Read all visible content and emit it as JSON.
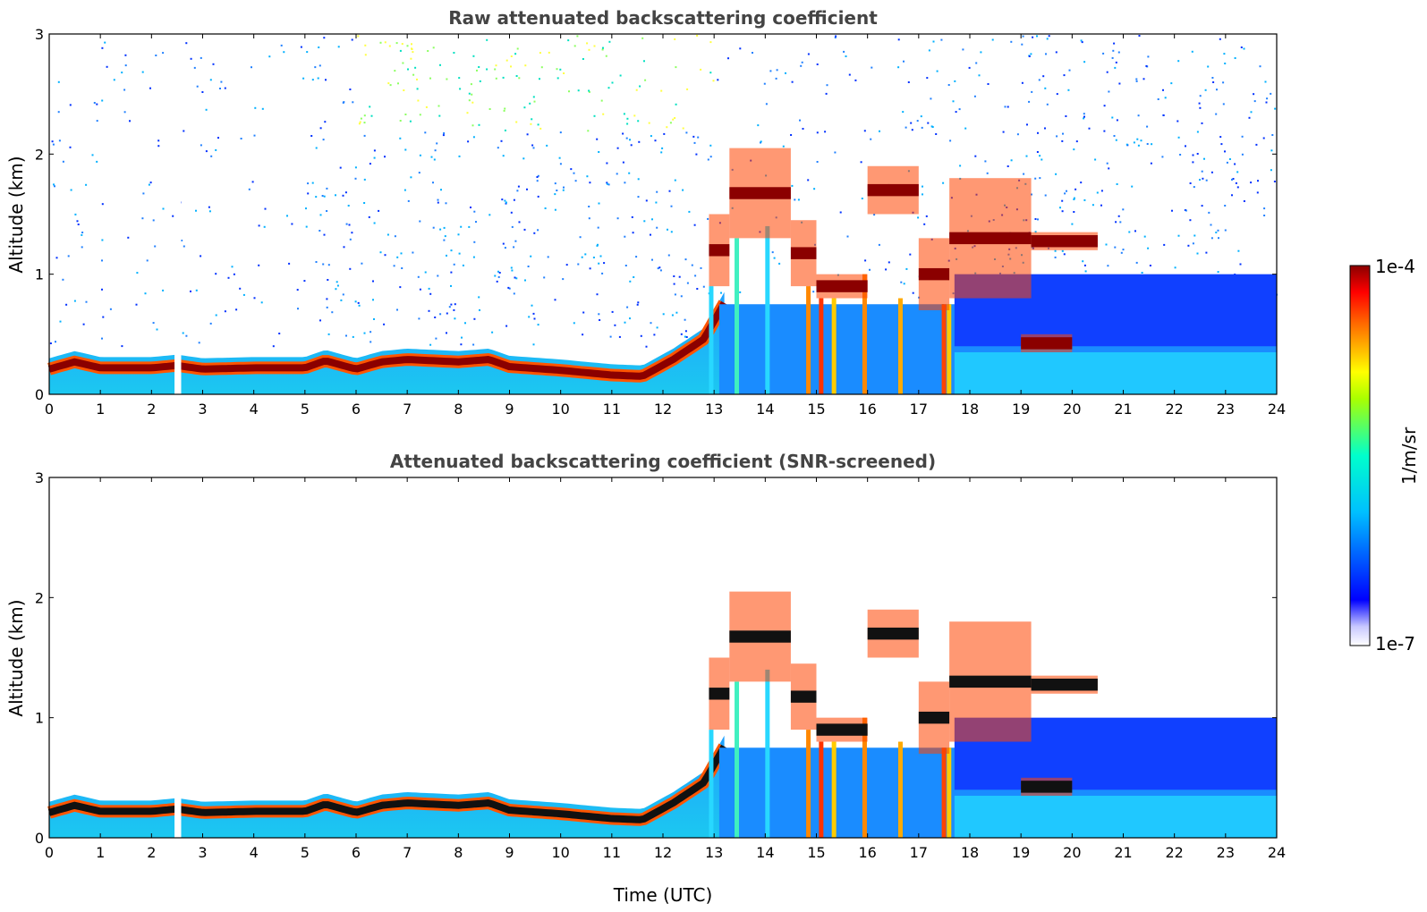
{
  "chart_data": [
    {
      "type": "heatmap",
      "title": "Raw attenuated backscattering coefficient",
      "xlabel": "",
      "ylabel": "Altitude (km)",
      "xlim": [
        0,
        24
      ],
      "ylim": [
        0,
        3
      ],
      "xticks": [
        "0",
        "1",
        "2",
        "3",
        "4",
        "5",
        "6",
        "7",
        "8",
        "9",
        "10",
        "11",
        "12",
        "13",
        "14",
        "15",
        "16",
        "17",
        "18",
        "19",
        "20",
        "21",
        "22",
        "23",
        "24"
      ],
      "yticks": [
        "0",
        "1",
        "2",
        "3"
      ],
      "grid": false,
      "boundary_layer_top_km": [
        [
          0,
          0.3
        ],
        [
          0.5,
          0.36
        ],
        [
          1,
          0.31
        ],
        [
          2,
          0.31
        ],
        [
          2.5,
          0.33
        ],
        [
          3,
          0.3
        ],
        [
          4,
          0.31
        ],
        [
          5,
          0.31
        ],
        [
          5.4,
          0.37
        ],
        [
          6,
          0.3
        ],
        [
          6.5,
          0.36
        ],
        [
          7,
          0.38
        ],
        [
          8,
          0.36
        ],
        [
          8.6,
          0.38
        ],
        [
          9,
          0.32
        ],
        [
          10,
          0.29
        ],
        [
          11,
          0.25
        ],
        [
          11.6,
          0.24
        ],
        [
          12.2,
          0.38
        ],
        [
          12.8,
          0.55
        ],
        [
          13.2,
          0.85
        ]
      ],
      "cloud_layers_km": [
        {
          "t": [
            12.9,
            13.3
          ],
          "base": 0.9,
          "top": 1.5
        },
        {
          "t": [
            13.3,
            14.5
          ],
          "base": 1.3,
          "top": 2.05
        },
        {
          "t": [
            14.5,
            15.0
          ],
          "base": 0.9,
          "top": 1.45
        },
        {
          "t": [
            15.0,
            16.0
          ],
          "base": 0.8,
          "top": 1.0
        },
        {
          "t": [
            16.0,
            17.0
          ],
          "base": 1.5,
          "top": 1.9
        },
        {
          "t": [
            17.0,
            17.6
          ],
          "base": 0.7,
          "top": 1.3
        },
        {
          "t": [
            17.6,
            19.2
          ],
          "base": 0.8,
          "top": 1.8
        },
        {
          "t": [
            19.2,
            20.5
          ],
          "base": 1.2,
          "top": 1.35
        },
        {
          "t": [
            19.0,
            20.0
          ],
          "base": 0.35,
          "top": 0.5
        }
      ]
    },
    {
      "type": "heatmap",
      "title": "Attenuated backscattering coefficient (SNR-screened)",
      "xlabel": "Time (UTC)",
      "ylabel": "Altitude (km)",
      "xlim": [
        0,
        24
      ],
      "ylim": [
        0,
        3
      ],
      "xticks": [
        "0",
        "1",
        "2",
        "3",
        "4",
        "5",
        "6",
        "7",
        "8",
        "9",
        "10",
        "11",
        "12",
        "13",
        "14",
        "15",
        "16",
        "17",
        "18",
        "19",
        "20",
        "21",
        "22",
        "23",
        "24"
      ],
      "yticks": [
        "0",
        "1",
        "2",
        "3"
      ],
      "grid": false
    }
  ],
  "colorbar": {
    "top_label": "1e-4",
    "bottom_label": "1e-7",
    "units": "1/m/sr",
    "scale": "log",
    "colors": [
      "#ffffff",
      "#0000ff",
      "#00bfff",
      "#00ffcc",
      "#ffff00",
      "#ff6600",
      "#8b0000"
    ]
  }
}
